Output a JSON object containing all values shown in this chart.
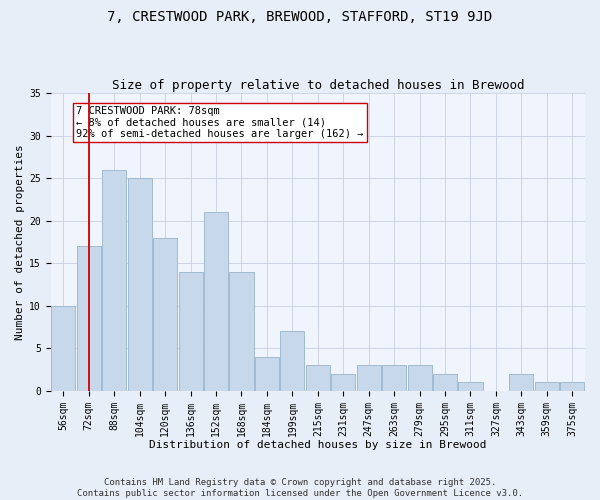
{
  "title": "7, CRESTWOOD PARK, BREWOOD, STAFFORD, ST19 9JD",
  "subtitle": "Size of property relative to detached houses in Brewood",
  "xlabel": "Distribution of detached houses by size in Brewood",
  "ylabel": "Number of detached properties",
  "categories": [
    "56sqm",
    "72sqm",
    "88sqm",
    "104sqm",
    "120sqm",
    "136sqm",
    "152sqm",
    "168sqm",
    "184sqm",
    "199sqm",
    "215sqm",
    "231sqm",
    "247sqm",
    "263sqm",
    "279sqm",
    "295sqm",
    "311sqm",
    "327sqm",
    "343sqm",
    "359sqm",
    "375sqm"
  ],
  "values": [
    10,
    17,
    26,
    25,
    18,
    14,
    21,
    14,
    4,
    7,
    3,
    2,
    3,
    3,
    3,
    2,
    1,
    0,
    2,
    1,
    1
  ],
  "bar_color": "#c8d8eb",
  "bar_edge_color": "#9ab4cc",
  "vline_x": 1,
  "vline_color": "#cc0000",
  "annotation_text": "7 CRESTWOOD PARK: 78sqm\n← 8% of detached houses are smaller (14)\n92% of semi-detached houses are larger (162) →",
  "annotation_box_color": "white",
  "annotation_box_edge": "#cc0000",
  "ylim": [
    0,
    35
  ],
  "yticks": [
    0,
    5,
    10,
    15,
    20,
    25,
    30,
    35
  ],
  "bg_color": "#e8eef8",
  "plot_bg_color": "#f0f4fc",
  "grid_color": "#c8d0e0",
  "footer": "Contains HM Land Registry data © Crown copyright and database right 2025.\nContains public sector information licensed under the Open Government Licence v3.0.",
  "title_fontsize": 10,
  "subtitle_fontsize": 9,
  "axis_label_fontsize": 8,
  "tick_fontsize": 7,
  "annotation_fontsize": 7.5,
  "footer_fontsize": 6.5
}
